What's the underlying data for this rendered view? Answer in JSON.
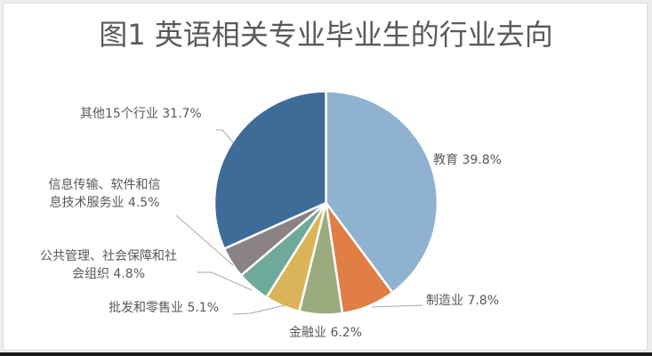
{
  "chart_data": {
    "type": "pie",
    "title": "图1 英语相关专业毕业生的行业去向",
    "start_angle_deg": 0,
    "direction": "clockwise",
    "slices": [
      {
        "label": "教育",
        "value": 39.8,
        "display": "39.8%",
        "color": "#8fb2d1"
      },
      {
        "label": "制造业",
        "value": 7.8,
        "display": "7.8%",
        "color": "#e07e45"
      },
      {
        "label": "金融业",
        "value": 6.2,
        "display": "6.2%",
        "color": "#9aab7e"
      },
      {
        "label": "批发和零售业",
        "value": 5.1,
        "display": "5.1%",
        "color": "#dbb45a"
      },
      {
        "label": "公共管理、社会保障和社会组织",
        "value": 4.8,
        "display": "4.8%",
        "color": "#6fa99a"
      },
      {
        "label": "信息传输、软件和信息技术服务业",
        "value": 4.5,
        "display": "4.5%",
        "color": "#8a8283"
      },
      {
        "label": "其他15个行业",
        "value": 31.7,
        "display": "31.7%",
        "color": "#3d6c99"
      }
    ],
    "legend": "none (data labels with leader lines)",
    "unit": "%"
  },
  "labels": {
    "education": {
      "line1": "教育  39.8%"
    },
    "manufacturing": {
      "line1": "制造业  7.8%"
    },
    "finance": {
      "line1": "金融业  6.2%"
    },
    "retail": {
      "line1": "批发和零售业  5.1%"
    },
    "public": {
      "line1": "公共管理、社会保障和社",
      "line2": "会组织  4.8%"
    },
    "it": {
      "line1": "信息传输、软件和信",
      "line2": "息技术服务业  4.5%"
    },
    "other": {
      "line1": "其他15个行业  31.7%"
    }
  }
}
